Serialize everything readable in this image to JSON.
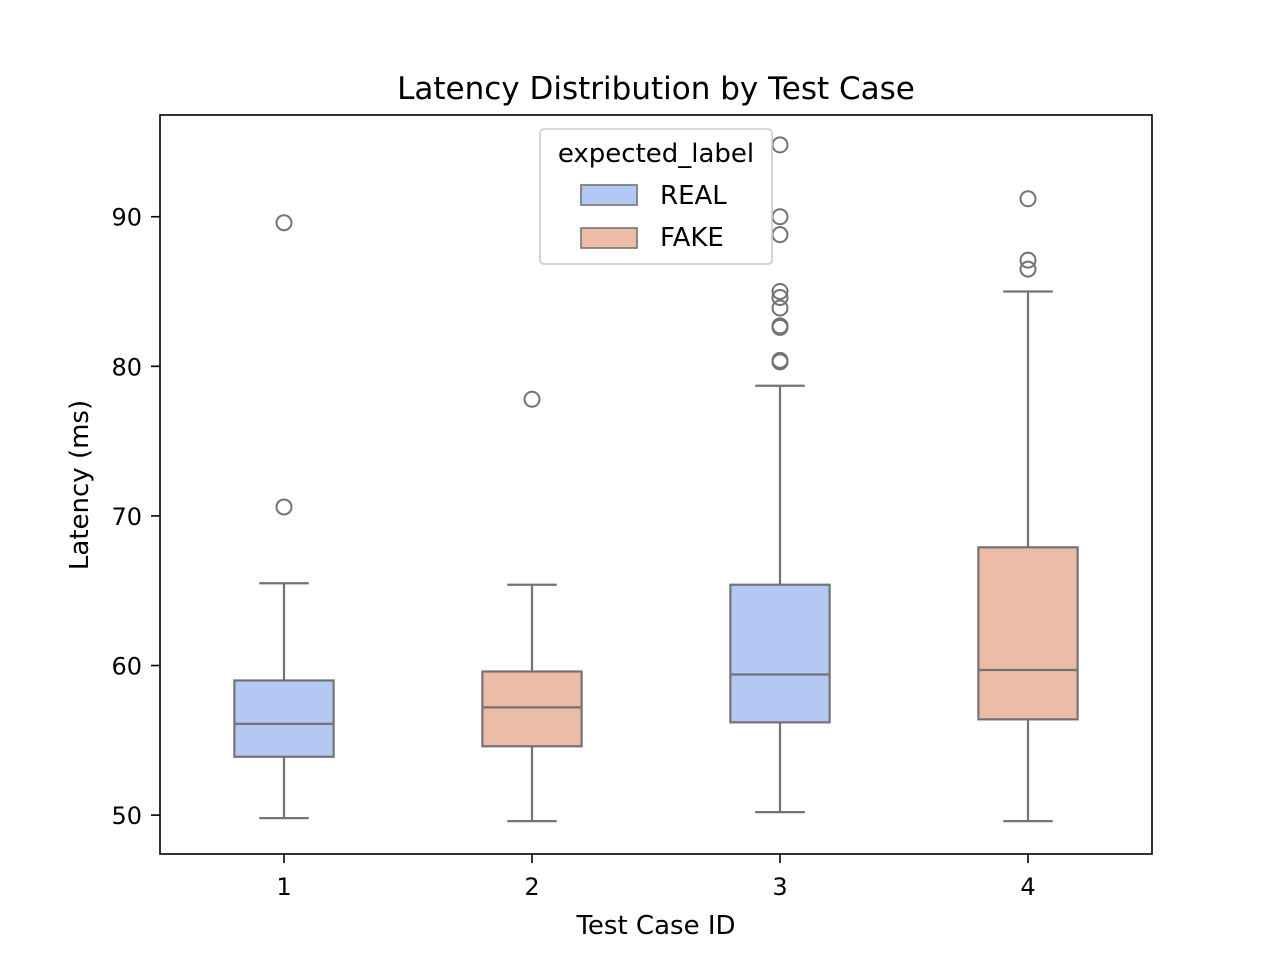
{
  "chart_data": {
    "type": "box",
    "title": "Latency Distribution by Test Case",
    "xlabel": "Test Case ID",
    "ylabel": "Latency (ms)",
    "ylim": [
      47.4,
      96.8
    ],
    "yticks": [
      50,
      60,
      70,
      80,
      90
    ],
    "grid": false,
    "legend": {
      "title": "expected_label",
      "placement": "top-center",
      "entries": [
        {
          "name": "REAL",
          "color": "#b4c8f4"
        },
        {
          "name": "FAKE",
          "color": "#ecbca7"
        }
      ]
    },
    "colors": {
      "REAL": "#b4c8f4",
      "FAKE": "#ecbca7",
      "stroke": "#737373"
    },
    "categories": [
      "1",
      "2",
      "3",
      "4"
    ],
    "boxes": [
      {
        "category": "1",
        "label": "REAL",
        "whisker_low": 49.8,
        "q1": 53.9,
        "median": 56.1,
        "q3": 59.0,
        "whisker_high": 65.5,
        "outliers": [
          89.6,
          70.6
        ]
      },
      {
        "category": "2",
        "label": "FAKE",
        "whisker_low": 49.6,
        "q1": 54.6,
        "median": 57.2,
        "q3": 59.6,
        "whisker_high": 65.4,
        "outliers": [
          77.8
        ]
      },
      {
        "category": "3",
        "label": "REAL",
        "whisker_low": 50.2,
        "q1": 56.2,
        "median": 59.4,
        "q3": 65.4,
        "whisker_high": 78.7,
        "outliers": [
          94.8,
          90.0,
          88.8,
          85.0,
          84.6,
          83.9,
          82.7,
          82.6,
          80.4,
          80.3
        ]
      },
      {
        "category": "4",
        "label": "FAKE",
        "whisker_low": 49.6,
        "q1": 56.4,
        "median": 59.7,
        "q3": 67.9,
        "whisker_high": 85.0,
        "outliers": [
          91.2,
          87.1,
          86.5
        ]
      }
    ]
  }
}
